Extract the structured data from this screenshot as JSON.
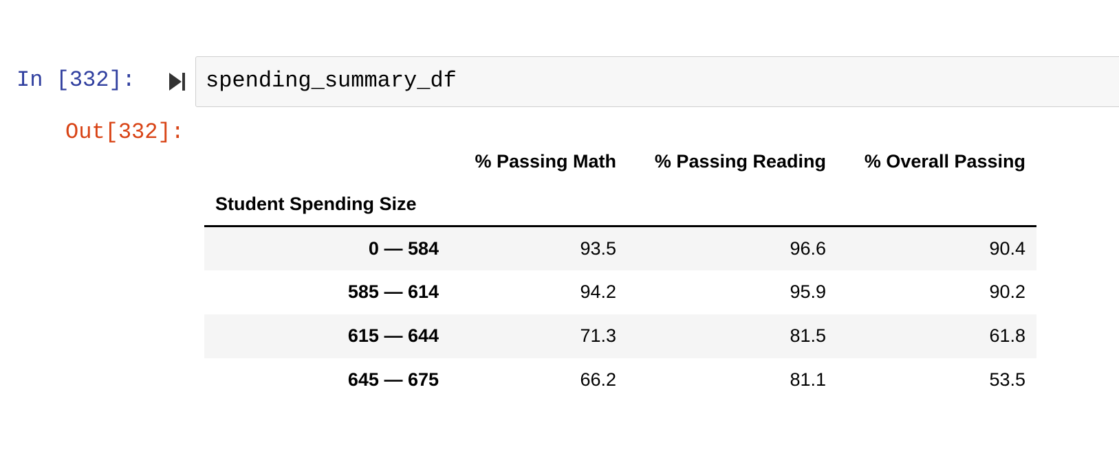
{
  "cell": {
    "in_prompt": "In [332]:",
    "out_prompt": "Out[332]:",
    "code": "spending_summary_df",
    "run_icon": "run-cell-icon"
  },
  "dataframe": {
    "columns": [
      "% Passing Math",
      "% Passing Reading",
      "% Overall Passing"
    ],
    "index_name": "Student Spending Size",
    "rows": [
      {
        "index": "0 — 584",
        "values": [
          "93.5",
          "96.6",
          "90.4"
        ]
      },
      {
        "index": "585 — 614",
        "values": [
          "94.2",
          "95.9",
          "90.2"
        ]
      },
      {
        "index": "615 — 644",
        "values": [
          "71.3",
          "81.5",
          "61.8"
        ]
      },
      {
        "index": "645 — 675",
        "values": [
          "66.2",
          "81.1",
          "53.5"
        ]
      }
    ]
  }
}
